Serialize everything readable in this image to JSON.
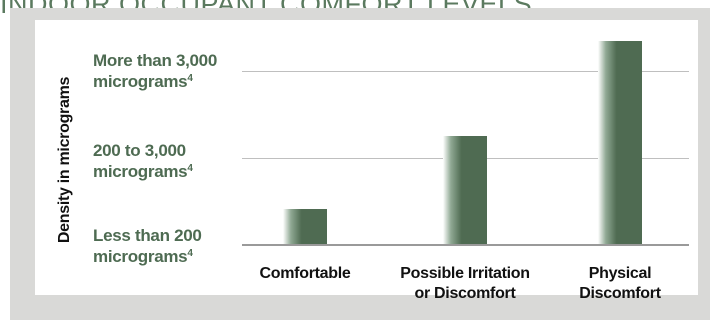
{
  "header": {
    "title": "INDOOR OCCUPANT COMFORT LEVELS"
  },
  "chart_data": {
    "type": "bar",
    "ylabel": "Density in micrograms",
    "levels": [
      {
        "line1": "More than 3,000",
        "line2": "micrograms",
        "sup": "4"
      },
      {
        "line1": "200 to 3,000",
        "line2": "micrograms",
        "sup": "4"
      },
      {
        "line1": "Less than 200",
        "line2": "micrograms",
        "sup": "4"
      }
    ],
    "categories": [
      "Comfortable",
      "Possible Irritation\nor Discomfort",
      "Physical\nDiscomfort"
    ],
    "values": [
      0.4,
      1.25,
      2.35
    ],
    "value_note": "heights relative to tier gridlines (1 = 200 to 3,000 line, 2 = More than 3,000 line)",
    "ylim": [
      0,
      2.35
    ],
    "grid": true,
    "colors": {
      "bar": "#4f6b52",
      "tier_text": "#4e6b52",
      "panel_bg": "#d9d9d7"
    }
  }
}
